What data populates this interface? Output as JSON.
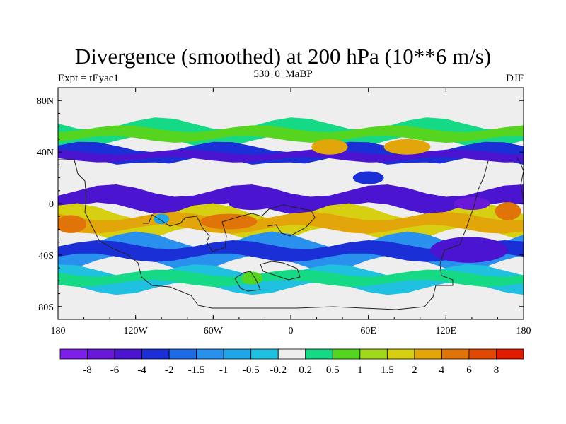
{
  "chart_data": {
    "type": "heatmap",
    "title": "Divergence (smoothed) at 200 hPa (10**6 m/s)",
    "left_label": "Expt = tEyac1",
    "center_label": "530_0_MaBP",
    "right_label": "DJF",
    "xlim": [
      -180,
      180
    ],
    "ylim": [
      -90,
      90
    ],
    "x_ticks": [
      {
        "value": -180,
        "label": "180"
      },
      {
        "value": -120,
        "label": "120W"
      },
      {
        "value": -60,
        "label": "60W"
      },
      {
        "value": 0,
        "label": "0"
      },
      {
        "value": 60,
        "label": "60E"
      },
      {
        "value": 120,
        "label": "120E"
      },
      {
        "value": 180,
        "label": "180"
      }
    ],
    "y_ticks": [
      {
        "value": 80,
        "label": "80N"
      },
      {
        "value": 40,
        "label": "40N"
      },
      {
        "value": 0,
        "label": "0"
      },
      {
        "value": -40,
        "label": "40S"
      },
      {
        "value": -80,
        "label": "80S"
      }
    ],
    "colorbar": {
      "colors": [
        "#7d1fe8",
        "#6a18d8",
        "#4a14d0",
        "#1a2fd6",
        "#1f6ae6",
        "#2a90ee",
        "#1ea6e8",
        "#20c0e0",
        "#eeeeee",
        "#16d985",
        "#55d520",
        "#a2d81a",
        "#d7cf11",
        "#e2a50a",
        "#e07408",
        "#e04804",
        "#e01b00"
      ],
      "labels": [
        "-8",
        "-6",
        "-4",
        "-2",
        "-1.5",
        "-1",
        "-0.5",
        "-0.2",
        "0.2",
        "0.5",
        "1",
        "1.5",
        "2",
        "4",
        "6",
        "8"
      ]
    },
    "bands": [
      {
        "lat_top": 62,
        "lat_bottom": 48,
        "level": 9
      },
      {
        "lat_top": 58,
        "lat_bottom": 50,
        "level": 10
      },
      {
        "lat_top": 44,
        "lat_bottom": 32,
        "level": 3
      },
      {
        "lat_top": 40,
        "lat_bottom": 34,
        "level": 2
      },
      {
        "lat_top": 30,
        "lat_bottom": 24,
        "level": 8
      },
      {
        "lat_top": 10,
        "lat_bottom": -4,
        "level": 2
      },
      {
        "lat_top": -6,
        "lat_bottom": -24,
        "level": 12
      },
      {
        "lat_top": -10,
        "lat_bottom": -20,
        "level": 13
      },
      {
        "lat_top": -28,
        "lat_bottom": -46,
        "level": 5
      },
      {
        "lat_top": -32,
        "lat_bottom": -42,
        "level": 3
      },
      {
        "lat_top": -52,
        "lat_bottom": -66,
        "level": 7
      },
      {
        "lat_top": -54,
        "lat_bottom": -62,
        "level": 9
      }
    ],
    "blobs": [
      {
        "lon": -170,
        "lat": -16,
        "rlon": 12,
        "rlat": 7,
        "level": 14
      },
      {
        "lon": -48,
        "lat": -14,
        "rlon": 22,
        "rlat": 6,
        "level": 14
      },
      {
        "lon": -100,
        "lat": -12,
        "rlon": 6,
        "rlat": 4,
        "level": 6
      },
      {
        "lon": -30,
        "lat": 0,
        "rlon": 18,
        "rlat": 5,
        "level": 2
      },
      {
        "lon": 140,
        "lat": 0,
        "rlon": 14,
        "rlat": 5,
        "level": 1
      },
      {
        "lon": 168,
        "lat": -6,
        "rlon": 10,
        "rlat": 7,
        "level": 14
      },
      {
        "lon": 138,
        "lat": -36,
        "rlon": 30,
        "rlat": 10,
        "level": 2
      },
      {
        "lon": 30,
        "lat": 44,
        "rlon": 14,
        "rlat": 6,
        "level": 13
      },
      {
        "lon": 90,
        "lat": 44,
        "rlon": 18,
        "rlat": 6,
        "level": 13
      },
      {
        "lon": 60,
        "lat": 20,
        "rlon": 12,
        "rlat": 5,
        "level": 3
      },
      {
        "lon": -30,
        "lat": -58,
        "rlon": 8,
        "rlat": 5,
        "level": 10
      }
    ]
  }
}
